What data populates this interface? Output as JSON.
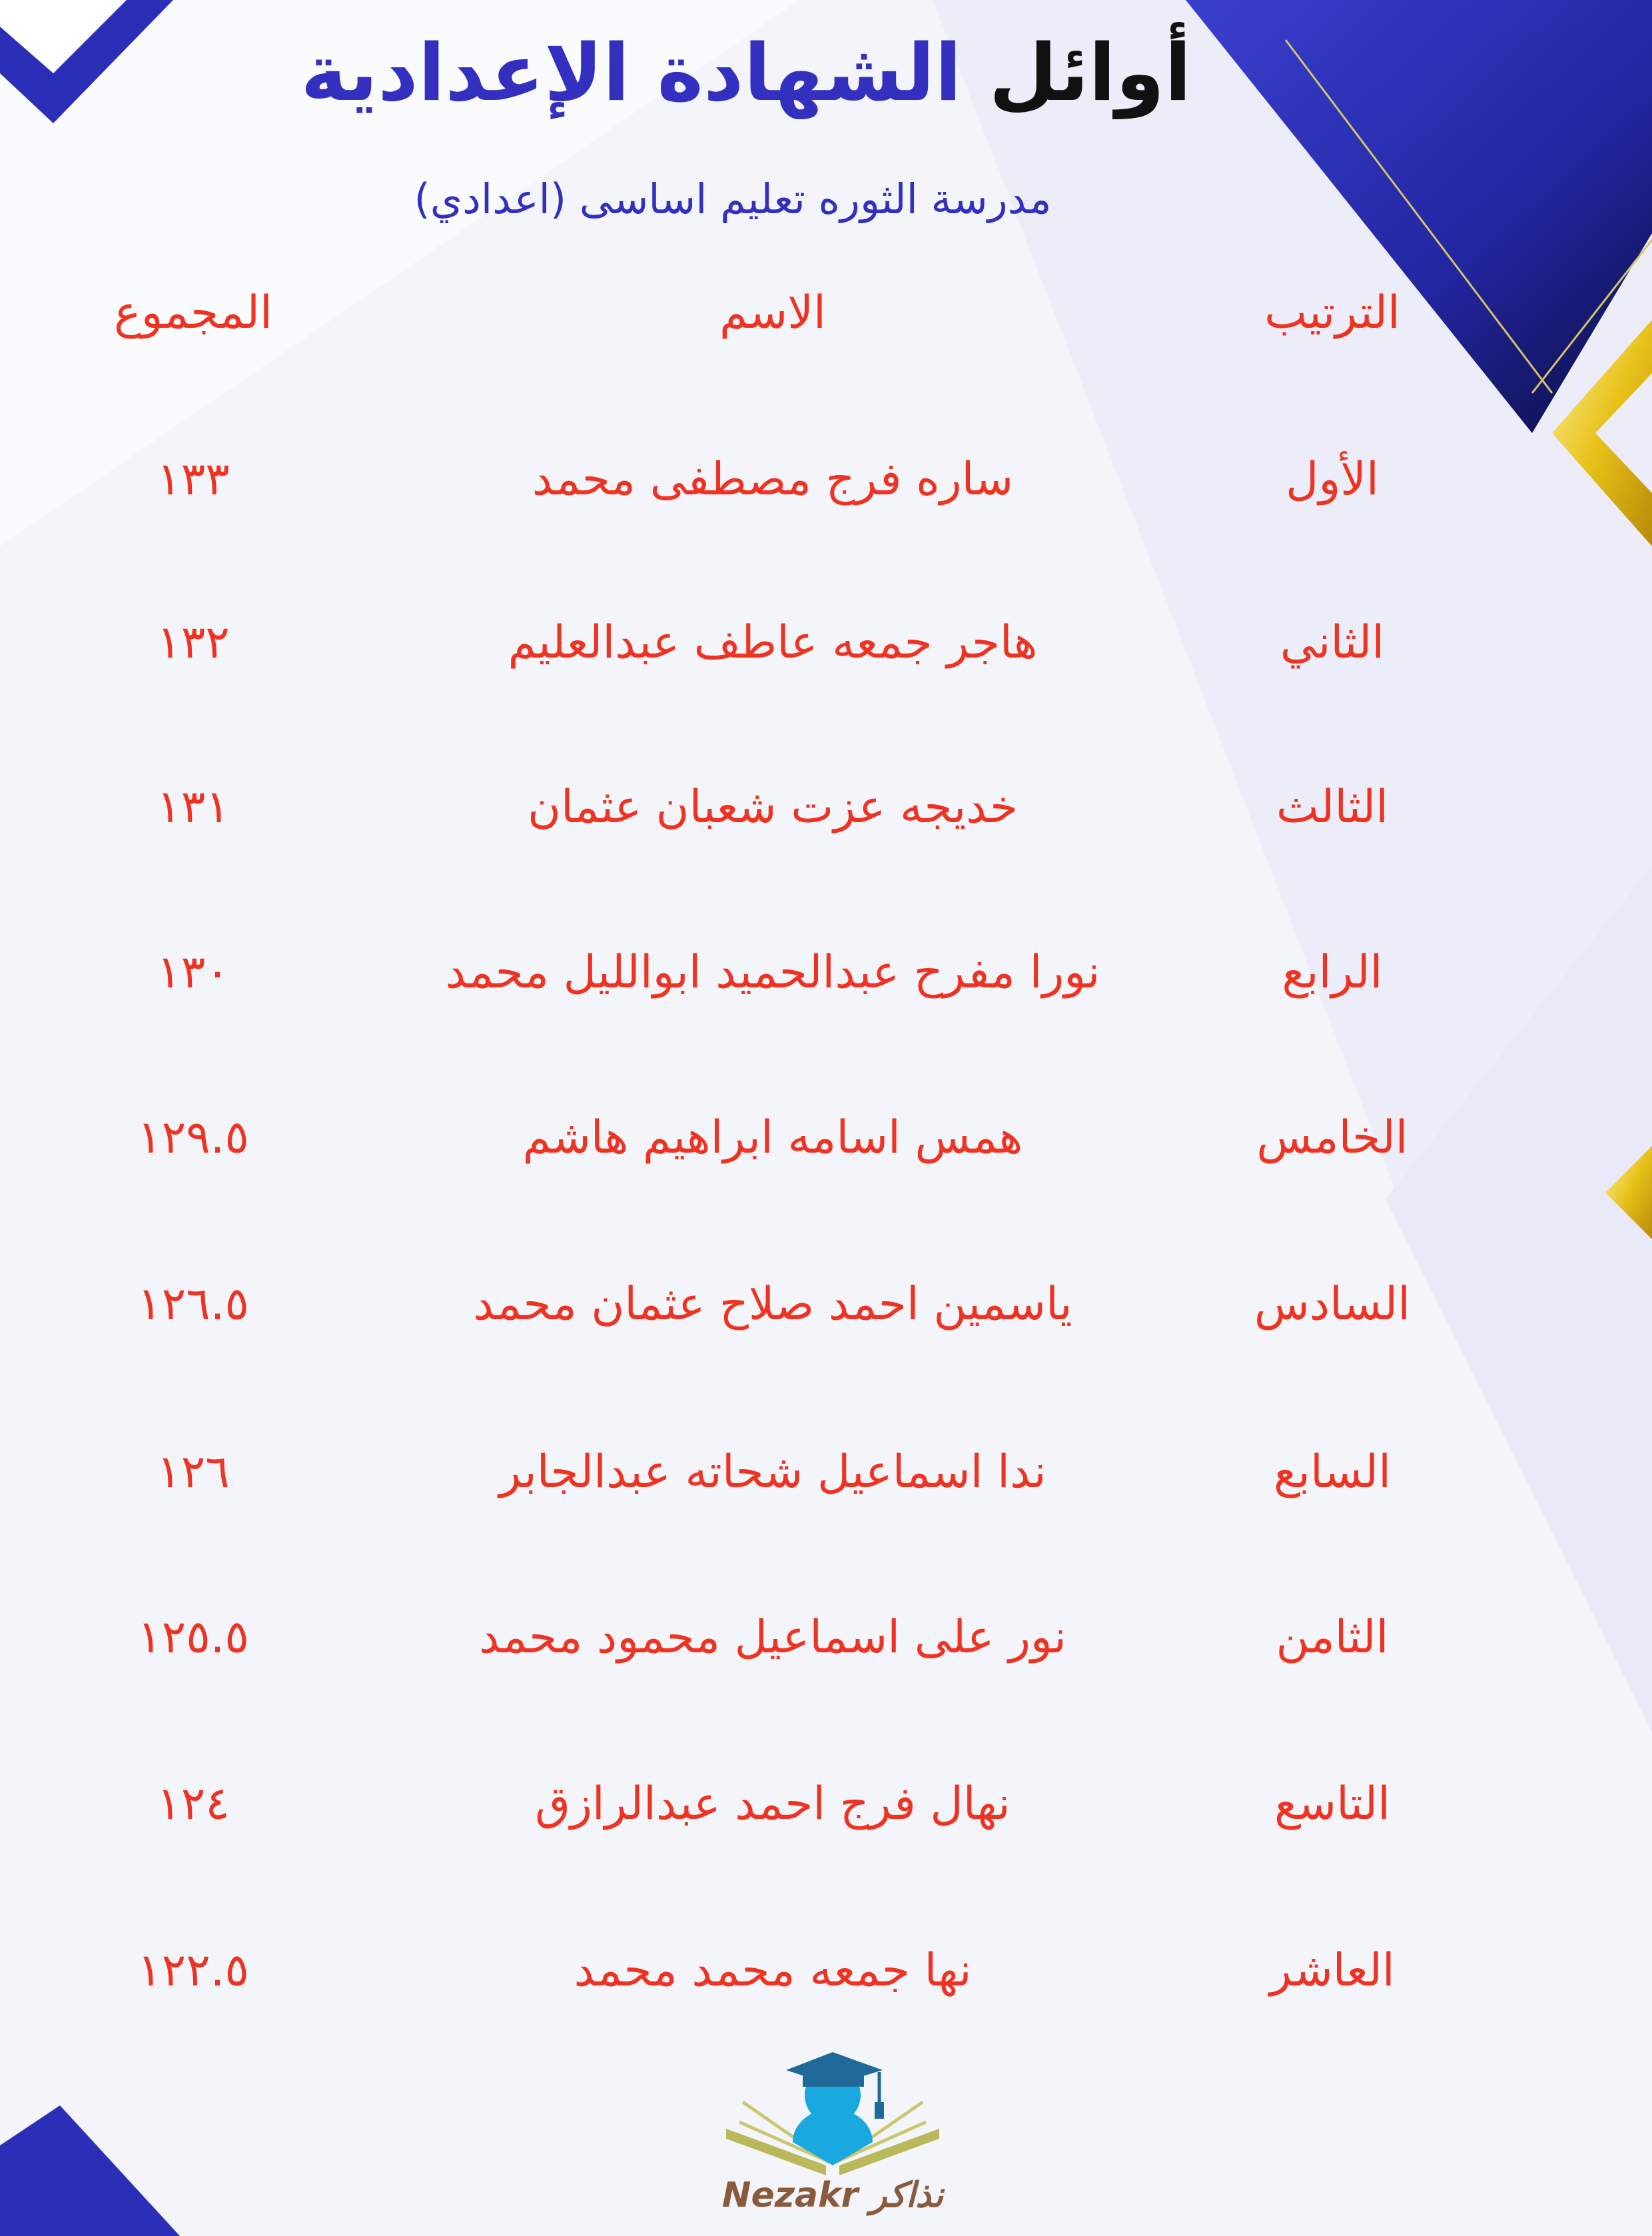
{
  "header": {
    "title_part1": "أوائل",
    "title_part2": "الشهادة الإعدادية",
    "subtitle": "مدرسة الثوره تعليم اساسى (اعدادي)"
  },
  "table": {
    "columns": {
      "rank": "الترتيب",
      "name": "الاسم",
      "total": "المجموع"
    },
    "rows": [
      {
        "rank": "الأول",
        "name": "ساره فرج مصطفى محمد",
        "total": "١٣٣"
      },
      {
        "rank": "الثاني",
        "name": "هاجر جمعه عاطف عبدالعليم",
        "total": "١٣٢"
      },
      {
        "rank": "الثالث",
        "name": "خديجه عزت شعبان عثمان",
        "total": "١٣١"
      },
      {
        "rank": "الرابع",
        "name": "نورا مفرح عبدالحميد ابوالليل محمد",
        "total": "١٣٠"
      },
      {
        "rank": "الخامس",
        "name": "همس اسامه ابراهيم هاشم",
        "total": "١٢٩.٥"
      },
      {
        "rank": "السادس",
        "name": "ياسمين احمد صلاح عثمان محمد",
        "total": "١٢٦.٥"
      },
      {
        "rank": "السابع",
        "name": "ندا اسماعيل شحاته عبدالجابر",
        "total": "١٢٦"
      },
      {
        "rank": "الثامن",
        "name": "نور على اسماعيل محمود محمد",
        "total": "١٢٥.٥"
      },
      {
        "rank": "التاسع",
        "name": "نهال فرج احمد عبدالرازق",
        "total": "١٢٤"
      },
      {
        "rank": "العاشر",
        "name": "نها جمعه محمد محمد",
        "total": "١٢٢.٥"
      }
    ]
  },
  "logo": {
    "text": "Nezakr نذاكر",
    "icon": "graduate-book-logo"
  },
  "colors": {
    "title_blue": "#3330c0",
    "table_red": "#ee3322",
    "accent_gold": "#e8c21a",
    "deep_blue": "#2b2fb8"
  }
}
